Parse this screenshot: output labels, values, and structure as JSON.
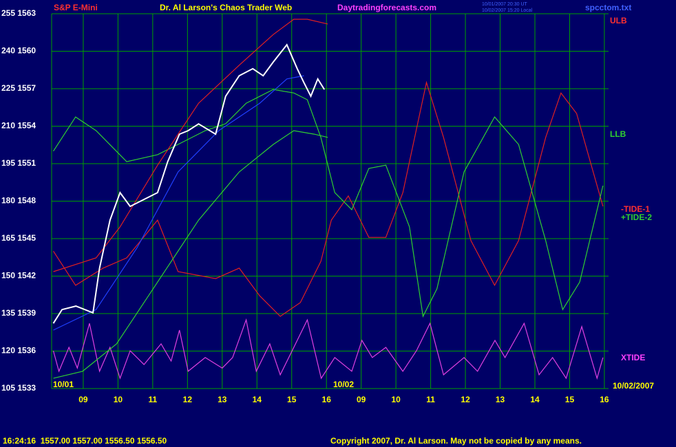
{
  "chart_data": {
    "type": "line",
    "title": "Dr. Al Larson's Chaos Trader Web",
    "symbol": "S&P E-Mini",
    "website": "Daytradingforecasts.com",
    "timestamps": [
      "10/01/2007 20:30 UT",
      "10/02/2007 15:20 Local"
    ],
    "file": "spcctom.txt",
    "date_labels": [
      "10/01",
      "10/02",
      "10/02/2007"
    ],
    "status": "16:24:16  1557.00 1557.00 1556.50 1556.50",
    "copyright": "Copyright 2007, Dr. Al Larson. May not be copied by any means.",
    "background": "#000066",
    "grid": true,
    "grid_color": "#00a000",
    "xlim": [
      8.09,
      24.12
    ],
    "xticks": [
      {
        "value": 9,
        "label": "09"
      },
      10,
      11,
      12,
      13,
      14,
      15,
      16,
      {
        "value": 17,
        "label": "09"
      },
      {
        "value": 18,
        "label": "10"
      },
      {
        "value": 19,
        "label": "11"
      },
      {
        "value": 20,
        "label": "12"
      },
      {
        "value": 21,
        "label": "13"
      },
      {
        "value": 22,
        "label": "14"
      },
      {
        "value": 23,
        "label": "15"
      },
      {
        "value": 24,
        "label": "16"
      }
    ],
    "ylim": [
      105,
      255
    ],
    "yticks": [
      {
        "value": 255,
        "label": "255 1563"
      },
      {
        "value": 240,
        "label": "240 1560"
      },
      {
        "value": 225,
        "label": "225 1557"
      },
      {
        "value": 210,
        "label": "210 1554"
      },
      {
        "value": 195,
        "label": "195 1551"
      },
      {
        "value": 180,
        "label": "180 1548"
      },
      {
        "value": 165,
        "label": "165 1545"
      },
      {
        "value": 150,
        "label": "150 1542"
      },
      {
        "value": 135,
        "label": "135 1539"
      },
      {
        "value": 120,
        "label": "120 1536"
      },
      {
        "value": 105,
        "label": "105 1533"
      }
    ],
    "series": [
      {
        "name": "XTIDE",
        "color": "#e040e0",
        "x": [
          8.14,
          8.3,
          8.59,
          8.83,
          9.18,
          9.47,
          9.77,
          10.06,
          10.35,
          10.75,
          11.24,
          11.53,
          11.77,
          12.02,
          12.51,
          13.0,
          13.3,
          13.69,
          13.98,
          14.37,
          14.67,
          15.06,
          15.45,
          15.85,
          16.24,
          16.73,
          17.02,
          17.32,
          17.71,
          18.2,
          18.59,
          18.98,
          19.37,
          19.96,
          20.35,
          20.85,
          21.14,
          21.69,
          22.12,
          22.51,
          22.9,
          23.35,
          23.79,
          23.96
        ],
        "values": [
          120.1,
          111.9,
          121.5,
          113.2,
          131.1,
          111.9,
          121.5,
          109.1,
          120.1,
          114.6,
          122.9,
          116.0,
          128.4,
          111.9,
          117.4,
          113.2,
          117.4,
          132.5,
          111.9,
          122.9,
          110.5,
          121.5,
          132.5,
          109.1,
          117.4,
          111.9,
          124.3,
          117.4,
          121.5,
          111.9,
          120.1,
          131.1,
          110.5,
          117.4,
          111.9,
          124.3,
          117.4,
          131.1,
          110.5,
          117.4,
          109.1,
          129.8,
          109.1,
          117.4
        ]
      },
      {
        "name": "-TIDE-1",
        "color": "#e02020",
        "x": [
          8.14,
          8.78,
          9.57,
          10.25,
          11.14,
          11.73,
          12.81,
          13.49,
          14.08,
          14.67,
          15.25,
          15.84,
          16.14,
          16.63,
          17.22,
          17.71,
          18.2,
          18.88,
          19.37,
          20.16,
          20.84,
          21.53,
          22.31,
          22.75,
          23.2,
          23.96
        ],
        "values": [
          160.0,
          146.3,
          153.2,
          157.3,
          172.4,
          151.8,
          149.0,
          153.2,
          142.1,
          133.9,
          139.4,
          155.9,
          172.4,
          182.1,
          165.5,
          165.5,
          183.4,
          227.5,
          205.5,
          164.2,
          146.3,
          164.2,
          205.5,
          223.3,
          215.1,
          177.9
        ]
      },
      {
        "name": "+TIDE-2",
        "color": "#30d030",
        "x": [
          8.14,
          8.78,
          9.37,
          10.25,
          11.14,
          11.73,
          12.51,
          13.1,
          13.69,
          14.47,
          15.06,
          15.45,
          15.84,
          16.24,
          16.73,
          17.22,
          17.71,
          18.39,
          18.78,
          19.18,
          19.96,
          20.84,
          21.53,
          22.31,
          22.8,
          23.29,
          23.96
        ],
        "values": [
          200.0,
          213.7,
          208.2,
          195.8,
          198.6,
          202.7,
          208.2,
          211.0,
          219.2,
          224.7,
          223.3,
          220.6,
          205.5,
          183.4,
          176.6,
          193.1,
          194.4,
          169.7,
          133.9,
          144.9,
          191.7,
          213.7,
          202.7,
          164.2,
          136.6,
          147.6,
          186.2
        ]
      },
      {
        "name": "ULB",
        "color": "#e02020",
        "x": [
          8.14,
          9.37,
          10.06,
          11.14,
          12.32,
          13.49,
          14.47,
          15.06,
          15.45,
          16.04
        ],
        "values": [
          151.8,
          157.3,
          169.7,
          194.4,
          219.2,
          234.4,
          246.7,
          252.8,
          252.8,
          250.9
        ]
      },
      {
        "name": "LLB",
        "color": "#30d030",
        "x": [
          8.14,
          8.98,
          9.96,
          11.14,
          12.32,
          13.49,
          14.47,
          15.06,
          15.65,
          16.04
        ],
        "values": [
          109.1,
          111.9,
          122.9,
          147.6,
          172.4,
          191.7,
          202.7,
          208.2,
          206.8,
          205.5
        ]
      },
      {
        "color": "#2040ff",
        "x": [
          8.14,
          9.37,
          10.55,
          11.73,
          12.9,
          14.08,
          14.86,
          15.35
        ],
        "values": [
          128.4,
          136.6,
          161.4,
          191.7,
          208.2,
          219.2,
          228.9,
          230.2
        ]
      },
      {
        "color": "#ffffff",
        "x": [
          8.14,
          8.39,
          8.79,
          9.28,
          9.47,
          9.77,
          10.06,
          10.35,
          10.75,
          11.14,
          11.43,
          11.77,
          12.02,
          12.32,
          12.81,
          13.1,
          13.49,
          13.88,
          14.18,
          14.47,
          14.86,
          15.16,
          15.35,
          15.55,
          15.75,
          15.94
        ],
        "values": [
          131.1,
          136.6,
          138.0,
          135.3,
          153.2,
          172.4,
          183.4,
          177.9,
          180.7,
          183.4,
          195.8,
          206.8,
          208.2,
          210.9,
          206.8,
          222.0,
          230.2,
          233.0,
          230.2,
          235.7,
          242.6,
          233.0,
          227.5,
          222.0,
          228.9,
          224.7
        ]
      }
    ]
  }
}
